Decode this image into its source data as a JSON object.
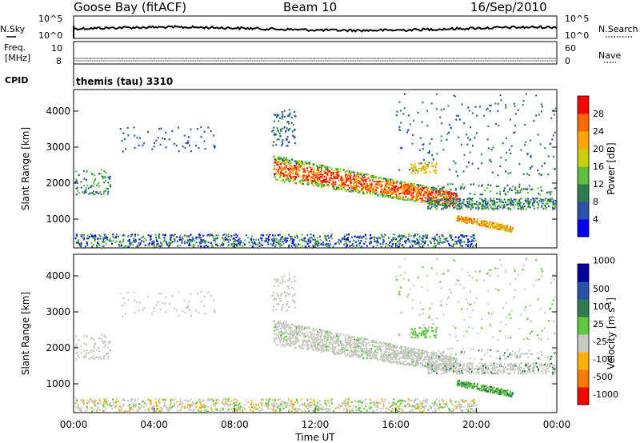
{
  "header": {
    "station": "Goose Bay (fitACF)",
    "beam": "Beam 10",
    "date": "16/Sep/2010"
  },
  "noise_panel": {
    "left_label": "N.Sky",
    "right_label": "N.Search",
    "left_ticks": [
      "10^5",
      "10^0"
    ],
    "right_ticks": [
      "10^5",
      "10^0"
    ]
  },
  "freq_panel": {
    "left_label_line1": "Freq.",
    "left_label_line2": "[MHz]",
    "right_label": "Nave",
    "left_ticks": [
      "10",
      "8"
    ],
    "right_ticks": [
      "60",
      "0"
    ],
    "cpid_label": "CPID",
    "cpid_value": "themis (tau) 3310"
  },
  "colors": {
    "power_scale": [
      "#0000ff",
      "#2a52a8",
      "#2e7b4f",
      "#5fbf3f",
      "#c8d000",
      "#ffa500",
      "#ff6a00",
      "#ff0000"
    ],
    "velocity_scale": [
      "#0000a0",
      "#2a52a8",
      "#2e7b4f",
      "#5fc93f",
      "#c9c9c2",
      "#ffb000",
      "#ff7a00",
      "#ff0000"
    ]
  },
  "chart_data": [
    {
      "type": "heatmap",
      "name_on_chart": "Power [dB]",
      "ylabel": "Slant Range [km]",
      "xlabel": "Time UT",
      "x_ticks": [
        "00:00",
        "04:00",
        "08:00",
        "12:00",
        "16:00",
        "20:00",
        "00:00"
      ],
      "y_ticks": [
        1000,
        2000,
        3000,
        4000
      ],
      "ylim": [
        200,
        4600
      ],
      "colorbar_label": "Power [dB]",
      "colorbar_ticks": [
        4,
        8,
        12,
        16,
        20,
        24,
        28
      ],
      "features": [
        {
          "desc": "strong band descending",
          "t_start": 9.9,
          "t_end": 19.0,
          "range_start": 2450,
          "range_end": 1550,
          "power": 24
        },
        {
          "desc": "lower continuation",
          "t_start": 17.5,
          "t_end": 24.0,
          "range_start": 1600,
          "range_end": 1350,
          "power": 10
        },
        {
          "desc": "weak near-range band",
          "t_start": 0.0,
          "t_end": 20.0,
          "range_start": 400,
          "range_end": 400,
          "power": 8
        },
        {
          "desc": "post-20 band",
          "t_start": 19.0,
          "t_end": 21.8,
          "range_start": 1050,
          "range_end": 700,
          "power": 22
        }
      ]
    },
    {
      "type": "heatmap",
      "name_on_chart": "Velocity [m s^-1]",
      "ylabel": "Slant Range [km]",
      "xlabel": "Time UT",
      "x_ticks": [
        "00:00",
        "04:00",
        "08:00",
        "12:00",
        "16:00",
        "20:00",
        "00:00"
      ],
      "y_ticks": [
        1000,
        2000,
        3000,
        4000
      ],
      "ylim": [
        200,
        4600
      ],
      "colorbar_label": "Velocity [m s",
      "colorbar_label_sup": "-1",
      "colorbar_label_end": "]",
      "colorbar_ticks": [
        "1000",
        "500",
        "100",
        "25",
        "-25",
        "-100",
        "-500",
        "-1000"
      ]
    }
  ],
  "axis": {
    "xlabel": "Time UT"
  }
}
